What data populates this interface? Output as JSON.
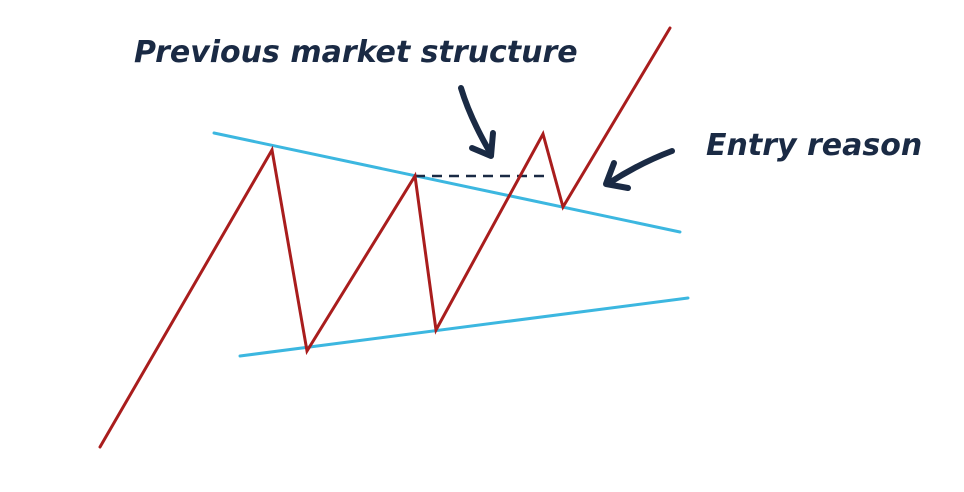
{
  "annotations": {
    "previous_structure": "Previous market structure",
    "entry_reason": "Entry reason"
  },
  "colors": {
    "background": "#ffffff",
    "price_line": "#a91d1d",
    "trend_line": "#3cb7e0",
    "annotation_text": "#1a2a44",
    "dashed_level": "#1a2a44"
  },
  "icons": [
    "arrow-down-right",
    "arrow-left-down"
  ]
}
